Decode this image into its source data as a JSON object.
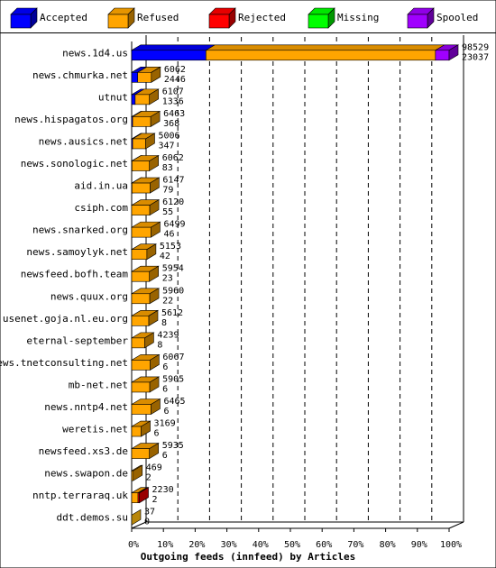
{
  "chart_data": {
    "type": "bar",
    "stacked": true,
    "orientation": "horizontal",
    "xlabel": "Outgoing feeds (innfeed) by Articles",
    "xlim": [
      0,
      100
    ],
    "x_ticks": [
      "0%",
      "10%",
      "20%",
      "30%",
      "40%",
      "50%",
      "60%",
      "70%",
      "80%",
      "90%",
      "100%"
    ],
    "legend_position": "top",
    "colors": {
      "Accepted": "#0000ff",
      "Refused": "#ffa500",
      "Rejected": "#ff0000",
      "Missing": "#00ff00",
      "Spooled": "#a000ff"
    },
    "series_names": [
      "Accepted",
      "Refused",
      "Rejected",
      "Missing",
      "Spooled"
    ],
    "categories": [
      "news.1d4.us",
      "news.chmurka.net",
      "utnut",
      "news.hispagatos.org",
      "news.ausics.net",
      "news.sonologic.net",
      "aid.in.ua",
      "csiph.com",
      "news.snarked.org",
      "news.samoylyk.net",
      "newsfeed.bofh.team",
      "news.quux.org",
      "usenet.goja.nl.eu.org",
      "eternal-september",
      "news.tnetconsulting.net",
      "mb-net.net",
      "news.nntp4.net",
      "weretis.net",
      "newsfeed.xs3.de",
      "news.swapon.de",
      "nntp.terraraq.uk",
      "ddt.demos.su"
    ],
    "offered_labels": [
      "98529",
      "6062",
      "6107",
      "6463",
      "5006",
      "6062",
      "6147",
      "6120",
      "6499",
      "5153",
      "5954",
      "5960",
      "5612",
      "4239",
      "6067",
      "5905",
      "6465",
      "3169",
      "5935",
      "469",
      "2230",
      "37"
    ],
    "accepted_labels": [
      "23037",
      "2446",
      "1336",
      "368",
      "347",
      "83",
      "79",
      "55",
      "46",
      "42",
      "23",
      "22",
      "8",
      "8",
      "6",
      "6",
      "6",
      "6",
      "6",
      "2",
      "2",
      "0"
    ],
    "series": [
      {
        "name": "Accepted",
        "values": [
          23.4,
          1.9,
          1.1,
          0.3,
          0.3,
          0.1,
          0.1,
          0,
          0,
          0,
          0,
          0,
          0,
          0,
          0,
          0,
          0,
          0,
          0,
          0,
          0,
          0
        ]
      },
      {
        "name": "Refused",
        "values": [
          72.3,
          4.3,
          4.5,
          5.7,
          4.1,
          5.5,
          5.7,
          5.7,
          6.1,
          4.8,
          5.6,
          5.7,
          5.4,
          4.1,
          5.8,
          5.7,
          6.1,
          3.0,
          5.6,
          0.5,
          2.0,
          0
        ]
      },
      {
        "name": "Rejected",
        "values": [
          0,
          0,
          0,
          0,
          0,
          0,
          0,
          0,
          0,
          0,
          0,
          0,
          0,
          0,
          0,
          0,
          0,
          0,
          0,
          0,
          0.3,
          0
        ]
      },
      {
        "name": "Missing",
        "values": [
          0,
          0,
          0,
          0,
          0,
          0,
          0,
          0,
          0,
          0,
          0,
          0,
          0,
          0,
          0,
          0,
          0,
          0,
          0,
          0,
          0,
          0
        ]
      },
      {
        "name": "Spooled",
        "values": [
          4.3,
          0,
          0,
          0,
          0,
          0,
          0,
          0,
          0,
          0,
          0,
          0,
          0,
          0,
          0,
          0,
          0,
          0,
          0,
          0,
          0,
          0
        ]
      }
    ]
  }
}
